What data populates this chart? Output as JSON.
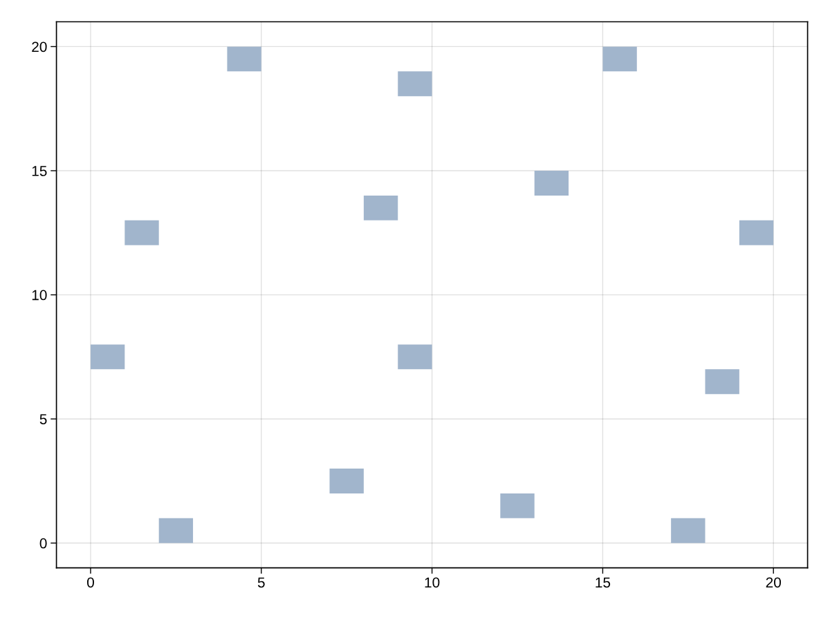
{
  "chart_data": {
    "type": "bar",
    "series": [
      {
        "color": "#a1b5cc",
        "x": [
          0.5,
          1.5,
          2.5,
          4.5,
          7.5,
          8.5,
          9.5,
          12.5,
          13.5,
          15.5,
          17.5,
          18.5,
          19.5
        ],
        "base": [
          7,
          12,
          0,
          19,
          2,
          13,
          18,
          1,
          14,
          19,
          0,
          6,
          12
        ],
        "values": [
          1,
          1,
          1,
          1,
          1,
          1,
          1,
          1,
          1,
          1,
          1,
          1,
          1
        ]
      },
      {
        "color": "#a1b5cc",
        "x": [
          9.5
        ],
        "base": [
          7
        ],
        "values": [
          1
        ]
      }
    ],
    "xlim": [
      -1,
      21
    ],
    "ylim": [
      -1,
      21
    ],
    "xticks": [
      0,
      5,
      10,
      15,
      20
    ],
    "yticks": [
      0,
      5,
      10,
      15,
      20
    ],
    "grid": true
  }
}
